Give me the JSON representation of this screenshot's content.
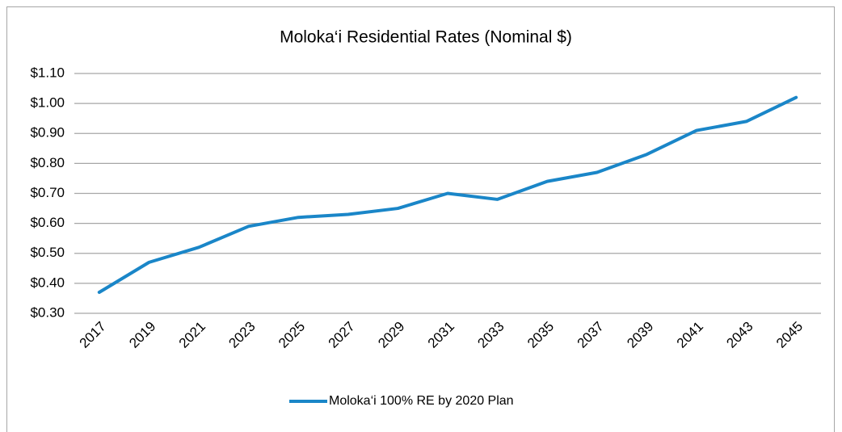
{
  "chart_data": {
    "type": "line",
    "title": "Moloka‘i Residential Rates (Nominal $)",
    "categories": [
      "2017",
      "2019",
      "2021",
      "2023",
      "2025",
      "2027",
      "2029",
      "2031",
      "2033",
      "2035",
      "2037",
      "2039",
      "2041",
      "2043",
      "2045"
    ],
    "series": [
      {
        "name": "Moloka‘i 100% RE by 2020 Plan",
        "color": "#1a86c8",
        "values": [
          0.37,
          0.47,
          0.52,
          0.59,
          0.62,
          0.63,
          0.65,
          0.7,
          0.68,
          0.74,
          0.77,
          0.83,
          0.91,
          0.94,
          1.02
        ]
      }
    ],
    "ylim": [
      0.3,
      1.1
    ],
    "yticks": [
      {
        "value": 0.3,
        "label": "$0.30"
      },
      {
        "value": 0.4,
        "label": "$0.40"
      },
      {
        "value": 0.5,
        "label": "$0.50"
      },
      {
        "value": 0.6,
        "label": "$0.60"
      },
      {
        "value": 0.7,
        "label": "$0.70"
      },
      {
        "value": 0.8,
        "label": "$0.80"
      },
      {
        "value": 0.9,
        "label": "$0.90"
      },
      {
        "value": 1.0,
        "label": "$1.00"
      },
      {
        "value": 1.1,
        "label": "$1.10"
      }
    ],
    "grid": true,
    "legend": "bottom"
  }
}
